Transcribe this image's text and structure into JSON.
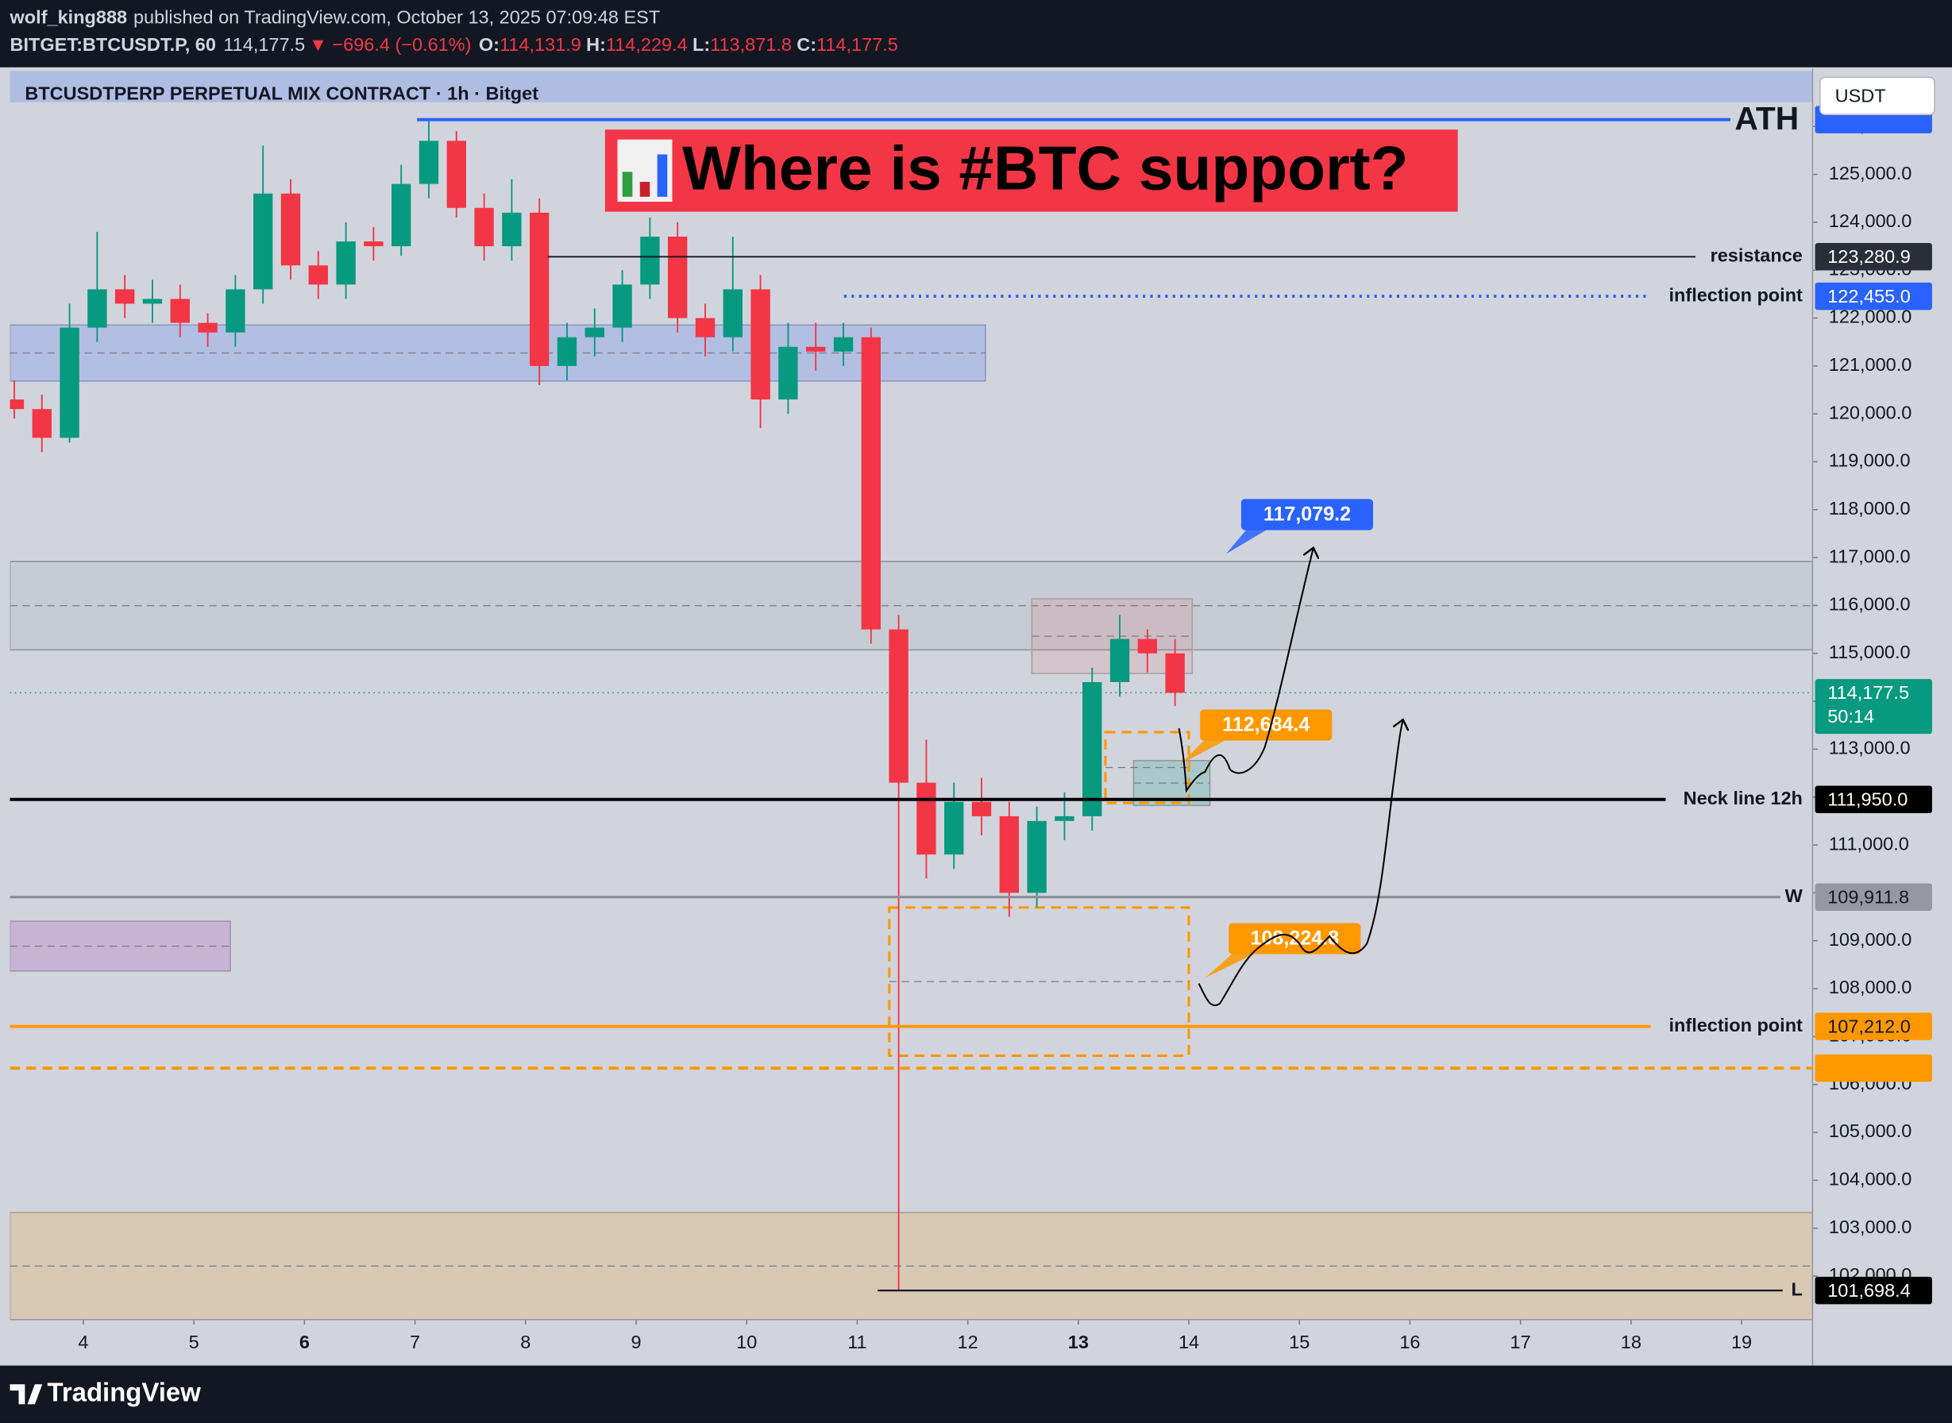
{
  "header": {
    "author": "wolf_king888",
    "published": "published on TradingView.com, October 13, 2025 07:09:48 EST",
    "symbol": "BITGET:BTCUSDT.P, 60",
    "last": "114,177.5",
    "arrow": "▼",
    "change": "−696.4 (−0.61%)",
    "o_label": "O:",
    "open": "114,131.9",
    "h_label": "H:",
    "high": "114,229.4",
    "l_label": "L:",
    "low": "113,871.8",
    "c_label": "C:",
    "close": "114,177.5"
  },
  "toolbar": {
    "currency": "USDT"
  },
  "footer": {
    "brand": "TradingView"
  },
  "chart_data": {
    "type": "candlestick",
    "title": "BTCUSDTPERP PERPETUAL MIX CONTRACT · 1h · Bitget",
    "banner": "Where is #BTC support?",
    "xlim": [
      3.336,
      19.642
    ],
    "xticks": [
      4,
      5,
      6,
      7,
      8,
      9,
      10,
      11,
      12,
      13,
      14,
      15,
      16,
      17,
      18,
      19
    ],
    "xticks_bold": [
      6,
      13
    ],
    "ylim": [
      101091,
      127209
    ],
    "yticks": [
      {
        "value": 102000,
        "label": "102,000.0"
      },
      {
        "value": 103000,
        "label": "103,000.0"
      },
      {
        "value": 104000,
        "label": "104,000.0"
      },
      {
        "value": 105000,
        "label": "105,000.0"
      },
      {
        "value": 106000,
        "label": "106,000.0"
      },
      {
        "value": 107000,
        "label": "107,000.0"
      },
      {
        "value": 108000,
        "label": "108,000.0"
      },
      {
        "value": 109000,
        "label": "109,000.0"
      },
      {
        "value": 110000,
        "label": "110,000.0"
      },
      {
        "value": 111000,
        "label": "111,000.0"
      },
      {
        "value": 112000,
        "label": "112,000.0"
      },
      {
        "value": 113000,
        "label": "113,000.0"
      },
      {
        "value": 114000,
        "label": "114,000.0"
      },
      {
        "value": 115000,
        "label": "115,000.0"
      },
      {
        "value": 116000,
        "label": "116,000.0"
      },
      {
        "value": 117000,
        "label": "117,000.0"
      },
      {
        "value": 118000,
        "label": "118,000.0"
      },
      {
        "value": 119000,
        "label": "119,000.0"
      },
      {
        "value": 120000,
        "label": "120,000.0"
      },
      {
        "value": 121000,
        "label": "121,000.0"
      },
      {
        "value": 122000,
        "label": "122,000.0"
      },
      {
        "value": 123000,
        "label": "123,000.0"
      },
      {
        "value": 124000,
        "label": "124,000.0"
      },
      {
        "value": 125000,
        "label": "125,000.0"
      },
      {
        "value": 126000,
        "label": "126,000.0"
      }
    ],
    "up_color": "#089981",
    "down_color": "#f23645",
    "candles": {
      "x": [
        3.375,
        3.625,
        3.875,
        4.125,
        4.375,
        4.625,
        4.875,
        5.125,
        5.375,
        5.625,
        5.875,
        6.125,
        6.375,
        6.625,
        6.875,
        7.125,
        7.375,
        7.625,
        7.875,
        8.125,
        8.375,
        8.625,
        8.875,
        9.125,
        9.375,
        9.625,
        9.875,
        10.125,
        10.375,
        10.625,
        10.875,
        11.125,
        11.375,
        11.625,
        11.875,
        12.125,
        12.375,
        12.625,
        12.875,
        13.125,
        13.375,
        13.625,
        13.875
      ],
      "open": [
        120300,
        120100,
        119500,
        121800,
        122600,
        122300,
        122400,
        121900,
        121700,
        122600,
        124600,
        123100,
        122700,
        123600,
        123500,
        124800,
        125700,
        124300,
        123500,
        124200,
        121000,
        121600,
        121800,
        122700,
        123700,
        122000,
        121600,
        122600,
        120300,
        121400,
        121300,
        121600,
        115500,
        112300,
        110800,
        111900,
        111600,
        110000,
        111500,
        111600,
        114400,
        115300,
        115000
      ],
      "high": [
        120700,
        120400,
        122300,
        123800,
        122900,
        122800,
        122700,
        122100,
        122900,
        125600,
        124900,
        123400,
        124000,
        123900,
        125200,
        126143,
        125900,
        124600,
        124900,
        124500,
        121900,
        122200,
        123000,
        124100,
        124000,
        122300,
        123700,
        122900,
        121900,
        121900,
        121900,
        121800,
        115800,
        113200,
        112300,
        112400,
        111900,
        111800,
        112100,
        114700,
        115800,
        115500,
        115300
      ],
      "low": [
        119900,
        119200,
        119400,
        121500,
        122000,
        121900,
        121600,
        121400,
        121400,
        122300,
        122800,
        122400,
        122400,
        123200,
        123300,
        124500,
        124100,
        123200,
        123200,
        120600,
        120700,
        121200,
        121500,
        122400,
        121700,
        121200,
        121300,
        119700,
        120000,
        120900,
        121000,
        115200,
        101698.4,
        110300,
        110500,
        111200,
        109500,
        109700,
        111100,
        111300,
        114100,
        114600,
        113900
      ],
      "close": [
        120100,
        119500,
        121800,
        122600,
        122300,
        122400,
        121900,
        121700,
        122600,
        124600,
        123100,
        122700,
        123600,
        123500,
        124800,
        125700,
        124300,
        123500,
        124200,
        121000,
        121600,
        121800,
        122700,
        123700,
        122000,
        121600,
        122600,
        120300,
        121400,
        121300,
        121600,
        115500,
        112300,
        110800,
        111900,
        111600,
        110000,
        111500,
        111600,
        114400,
        115300,
        115000,
        114177.5
      ]
    },
    "zones": [
      {
        "from": 3.336,
        "to": 12.16,
        "top": 121855,
        "bottom": 120686,
        "color": "rgba(41,98,255,0.18)",
        "border": "#8a97c0",
        "style": "solid"
      },
      {
        "from": 3.336,
        "to": 19.642,
        "top": 116918,
        "bottom": 115073,
        "color": "rgba(120,123,134,0.1)",
        "border": "#8f939c",
        "style": "solid"
      },
      {
        "from": 12.58,
        "to": 14.03,
        "top": 116138,
        "bottom": 114579,
        "color": "rgba(242,54,69,0.1)",
        "border": "#a9a0a6",
        "style": "solid"
      },
      {
        "from": 13.5,
        "to": 14.19,
        "top": 112760,
        "bottom": 111825,
        "color": "rgba(8,153,129,0.2)",
        "border": "#8f9a96",
        "style": "solid"
      },
      {
        "from": 3.336,
        "to": 5.33,
        "top": 109408,
        "bottom": 108368,
        "color": "rgba(156,39,176,0.18)",
        "border": "#a196a8",
        "style": "solid"
      },
      {
        "from": 3.336,
        "to": 19.642,
        "top": 103326,
        "bottom": 101091,
        "color": "rgba(255,152,0,0.18)",
        "border": "#a39f99",
        "style": "solid"
      },
      {
        "from": 13.245,
        "to": 14.0,
        "top": 113357,
        "bottom": 111876,
        "color": "none",
        "border": "#ff9800",
        "style": "dashed"
      },
      {
        "from": 11.29,
        "to": 14.0,
        "top": 109693,
        "bottom": 106601,
        "color": "none",
        "border": "#ff9800",
        "style": "dashed"
      }
    ],
    "levels": [
      {
        "label": "ATH",
        "value": 126143,
        "color": "#2962ff",
        "style": "solid"
      },
      {
        "label": "resistance",
        "value": 123280.9,
        "price_label": "123,280.9",
        "color": "#131722",
        "tag_color": "#2a2e39",
        "tag_text": "#ffffff",
        "style": "solid"
      },
      {
        "label": "inflection point",
        "value": 122455,
        "price_label": "122,455.0",
        "color": "#2962ff",
        "tag_color": "#2962ff",
        "tag_text": "#ffffff",
        "style": "dotted"
      },
      {
        "label": "Neck line 12h",
        "value": 111950,
        "price_label": "111,950.0",
        "color": "#000000",
        "tag_color": "#000000",
        "tag_text": "#ffffff",
        "style": "solid"
      },
      {
        "label": "W",
        "value": 109911.8,
        "price_label": "109,911.8",
        "color": "#8a8d95",
        "tag_color": "#9598a1",
        "tag_text": "#131722",
        "style": "solid"
      },
      {
        "label": "inflection point",
        "value": 107212,
        "price_label": "107,212.0",
        "color": "#ff9800",
        "tag_color": "#ff9800",
        "tag_text": "#131722",
        "style": "solid"
      },
      {
        "value": 106341,
        "color": "#ff9800",
        "style": "dashed"
      },
      {
        "label": "L",
        "value": 101698.4,
        "price_label": "101,698.4",
        "color": "#131722",
        "tag_color": "#000000",
        "tag_text": "#ffffff",
        "style": "solid"
      }
    ],
    "last_price": {
      "value": 114177.5,
      "label": "114,177.5",
      "countdown": "50:14",
      "color": "#089981"
    },
    "callouts": [
      {
        "value": 117079.2,
        "label": "117,079.2",
        "color": "#2962ff"
      },
      {
        "value": 112684.4,
        "label": "112,684.4",
        "color": "#ff9800"
      },
      {
        "value": 108224.8,
        "label": "108,224.8",
        "color": "#ff9800"
      }
    ]
  }
}
